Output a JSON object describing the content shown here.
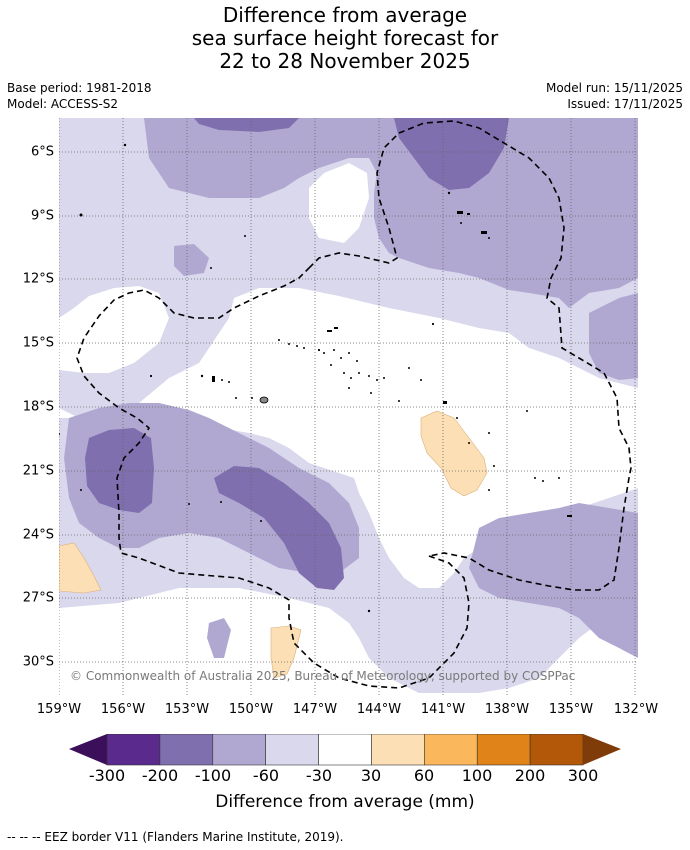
{
  "title_lines": [
    "Difference from average",
    "sea surface height forecast for",
    "22 to 28 November 2025"
  ],
  "base_period": "Base period: 1981-2018",
  "model": "Model: ACCESS-S2",
  "model_run": "Model run: 15/11/2025",
  "issued": "Issued: 17/11/2025",
  "lat_labels": [
    "6°S",
    "9°S",
    "12°S",
    "15°S",
    "18°S",
    "21°S",
    "24°S",
    "27°S",
    "30°S"
  ],
  "lon_labels": [
    "159°W",
    "156°W",
    "153°W",
    "150°W",
    "147°W",
    "144°W",
    "141°W",
    "138°W",
    "135°W",
    "132°W"
  ],
  "copyright": "© Commonwealth of Australia 2025, Bureau of Meteorology, supported by COSPPac",
  "colorbar": {
    "ticks": [
      "-300",
      "-200",
      "-100",
      "-60",
      "-30",
      "30",
      "60",
      "100",
      "200",
      "300"
    ],
    "colors": [
      "#3b0f5a",
      "#5a2a8c",
      "#7f6fae",
      "#b1a8d1",
      "#d9d8ec",
      "#ffffff",
      "#fddfb5",
      "#fbb75c",
      "#e08318",
      "#b35808",
      "#7f3b08"
    ],
    "label": "Difference from average (mm)"
  },
  "footer": "--  --  -- EEZ border V11 (Flanders Marine Institute, 2019)."
}
